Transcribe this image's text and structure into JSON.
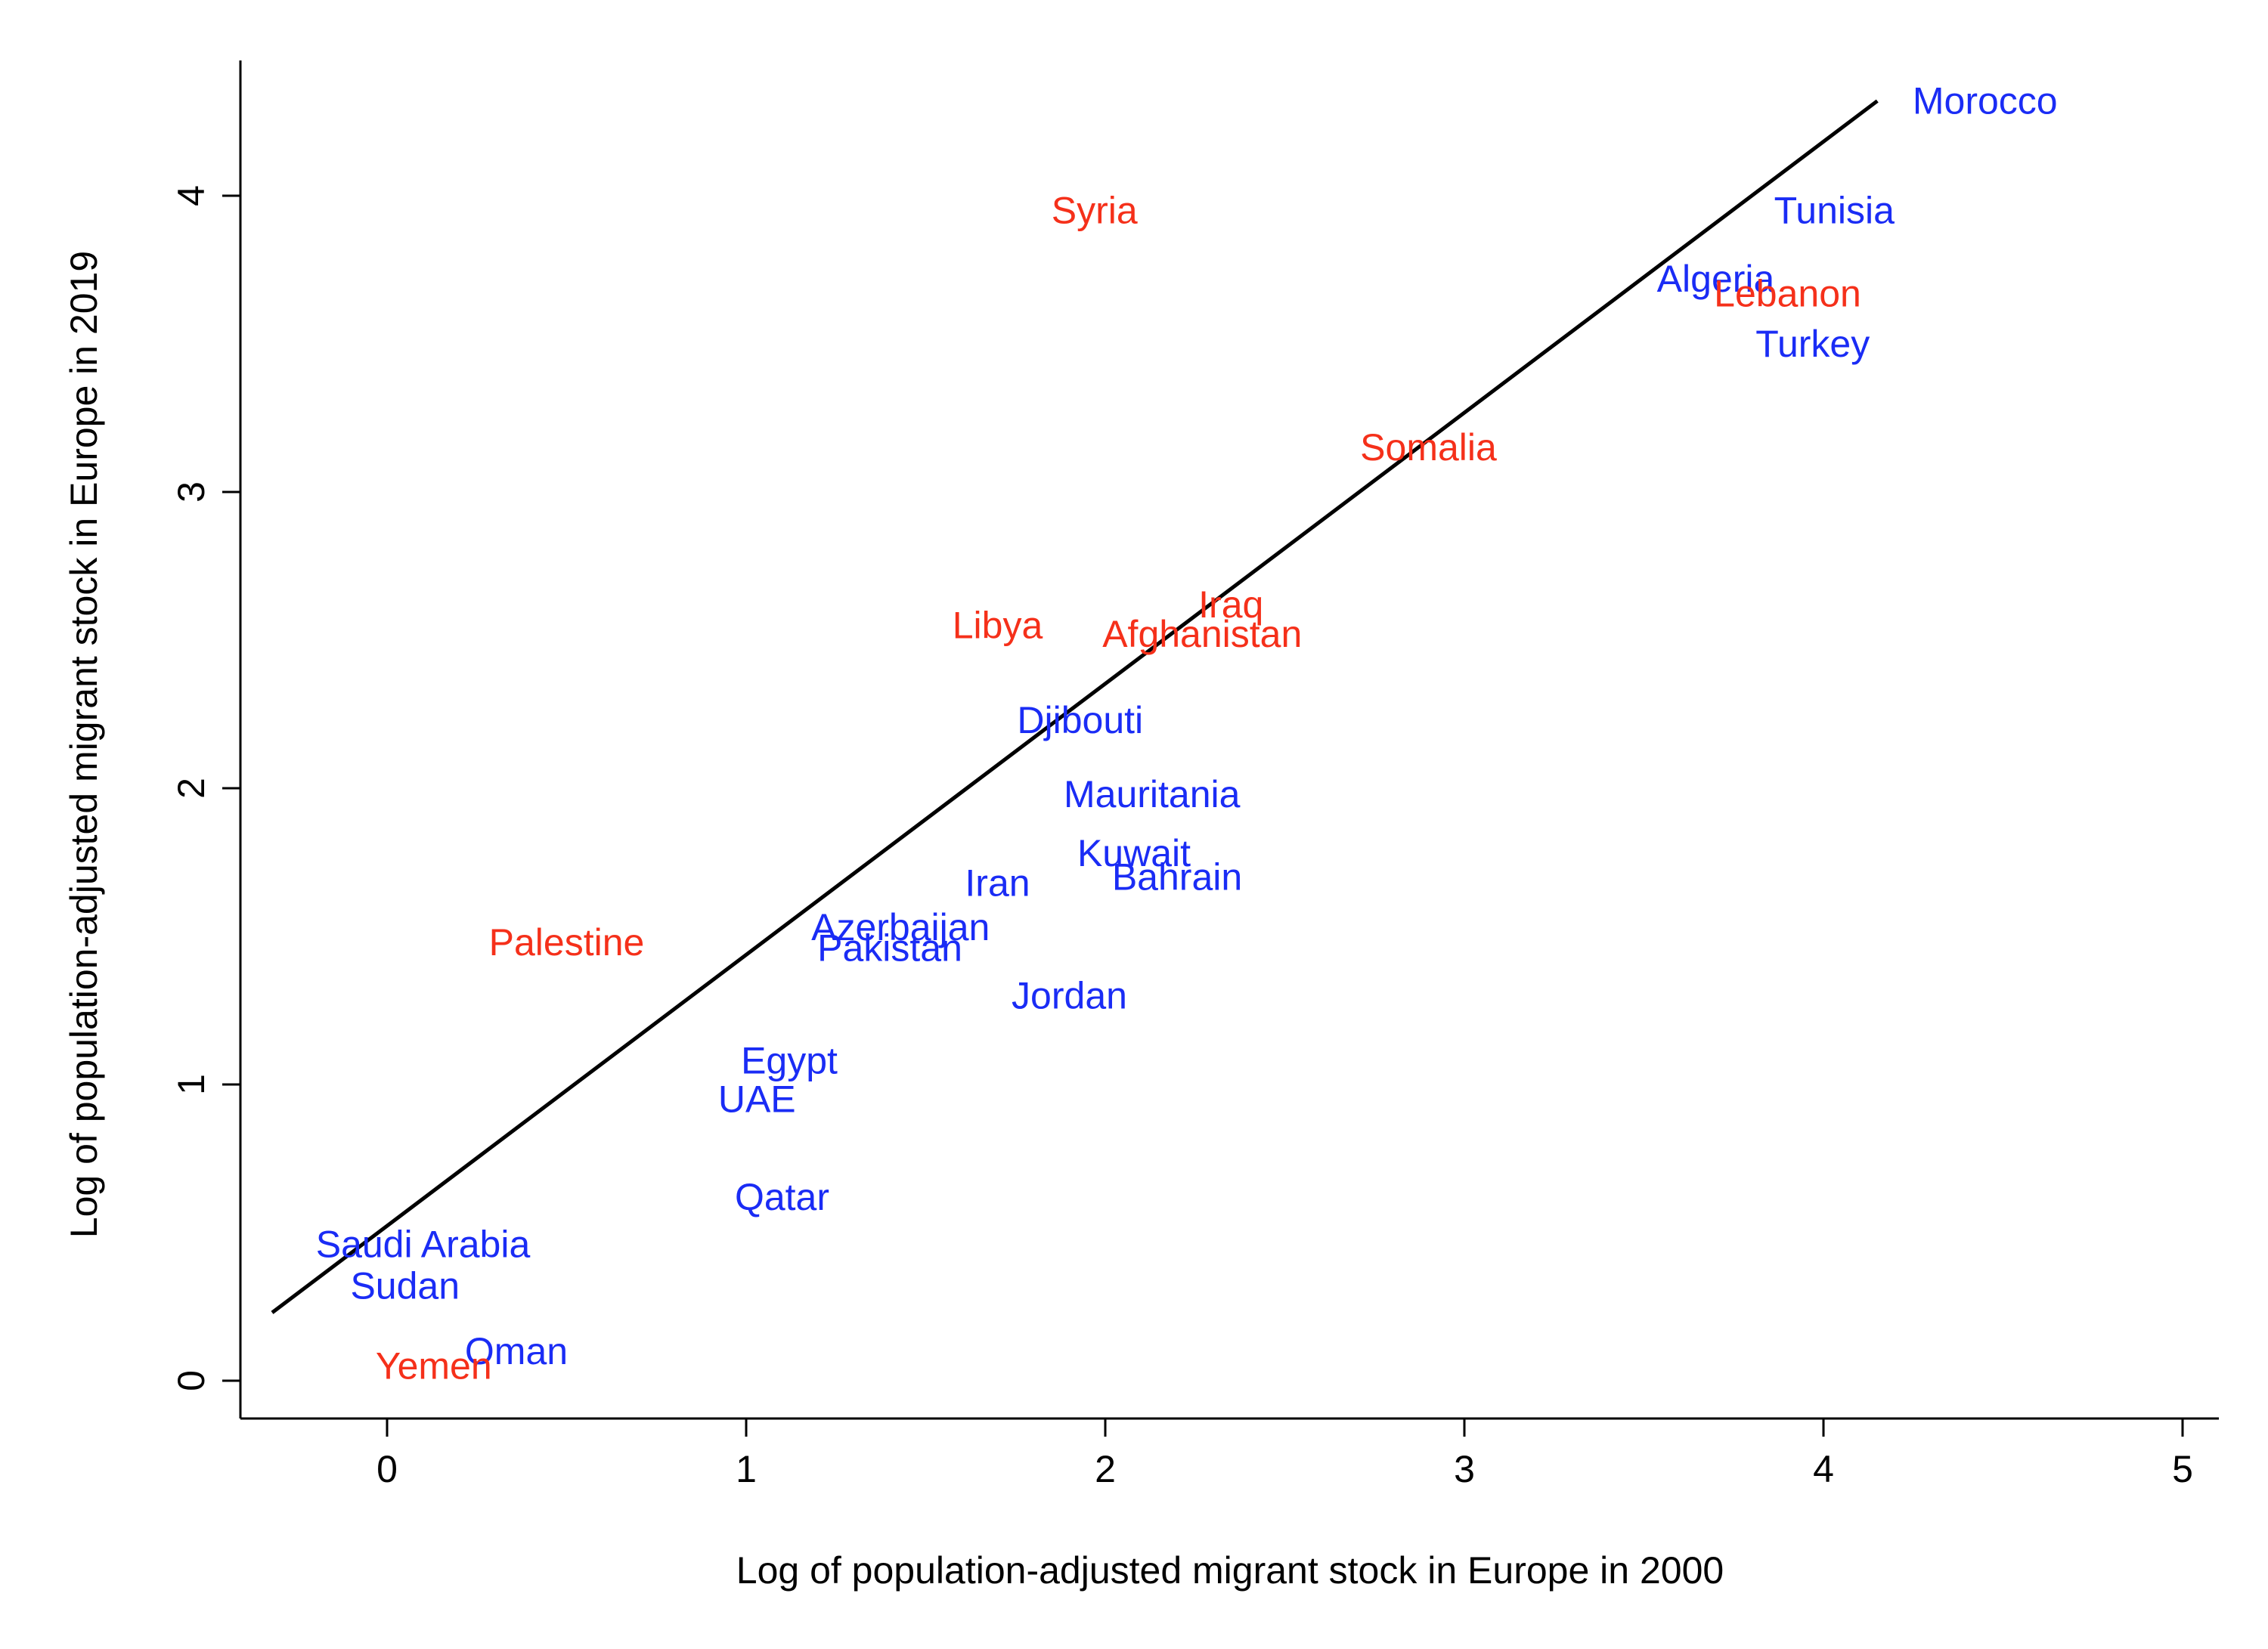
{
  "chart_data": {
    "type": "scatter",
    "title": "",
    "xlabel": "Log of population-adjusted migrant stock in Europe in 2000",
    "ylabel": "Log of population-adjusted migrant stock in Europe in 2019",
    "xlim": [
      -0.4,
      5.1
    ],
    "ylim": [
      -0.12,
      4.45
    ],
    "x_ticks": [
      0,
      1,
      2,
      3,
      4,
      5
    ],
    "y_ticks": [
      0,
      1,
      2,
      3,
      4
    ],
    "grid": false,
    "legend": "none",
    "colors": {
      "blue": "#1a2cf5",
      "red": "#f5301a"
    },
    "fit_line": {
      "x": [
        -0.32,
        4.15
      ],
      "y": [
        0.23,
        4.32
      ]
    },
    "points": [
      {
        "label": "Morocco",
        "x": 4.45,
        "y": 4.32,
        "color": "blue"
      },
      {
        "label": "Tunisia",
        "x": 4.03,
        "y": 3.95,
        "color": "blue"
      },
      {
        "label": "Algeria",
        "x": 3.7,
        "y": 3.72,
        "color": "blue"
      },
      {
        "label": "Lebanon",
        "x": 3.9,
        "y": 3.67,
        "color": "red"
      },
      {
        "label": "Turkey",
        "x": 3.97,
        "y": 3.5,
        "color": "blue"
      },
      {
        "label": "Syria",
        "x": 1.97,
        "y": 3.95,
        "color": "red"
      },
      {
        "label": "Somalia",
        "x": 2.9,
        "y": 3.15,
        "color": "red"
      },
      {
        "label": "Iraq",
        "x": 2.35,
        "y": 2.62,
        "color": "red"
      },
      {
        "label": "Afghanistan",
        "x": 2.27,
        "y": 2.52,
        "color": "red"
      },
      {
        "label": "Libya",
        "x": 1.7,
        "y": 2.55,
        "color": "red"
      },
      {
        "label": "Djibouti",
        "x": 1.93,
        "y": 2.23,
        "color": "blue"
      },
      {
        "label": "Mauritania",
        "x": 2.13,
        "y": 1.98,
        "color": "blue"
      },
      {
        "label": "Kuwait",
        "x": 2.08,
        "y": 1.78,
        "color": "blue"
      },
      {
        "label": "Bahrain",
        "x": 2.2,
        "y": 1.7,
        "color": "blue"
      },
      {
        "label": "Iran",
        "x": 1.7,
        "y": 1.68,
        "color": "blue"
      },
      {
        "label": "Azerbaijan",
        "x": 1.43,
        "y": 1.53,
        "color": "blue"
      },
      {
        "label": "Pakistan",
        "x": 1.4,
        "y": 1.46,
        "color": "blue"
      },
      {
        "label": "Jordan",
        "x": 1.9,
        "y": 1.3,
        "color": "blue"
      },
      {
        "label": "Palestine",
        "x": 0.5,
        "y": 1.48,
        "color": "red"
      },
      {
        "label": "Egypt",
        "x": 1.12,
        "y": 1.08,
        "color": "blue"
      },
      {
        "label": "UAE",
        "x": 1.03,
        "y": 0.95,
        "color": "blue"
      },
      {
        "label": "Qatar",
        "x": 1.1,
        "y": 0.62,
        "color": "blue"
      },
      {
        "label": "Saudi Arabia",
        "x": 0.1,
        "y": 0.46,
        "color": "blue"
      },
      {
        "label": "Sudan",
        "x": 0.05,
        "y": 0.32,
        "color": "blue"
      },
      {
        "label": "Oman",
        "x": 0.36,
        "y": 0.1,
        "color": "blue"
      },
      {
        "label": "Yemen",
        "x": 0.13,
        "y": 0.05,
        "color": "red"
      }
    ]
  }
}
